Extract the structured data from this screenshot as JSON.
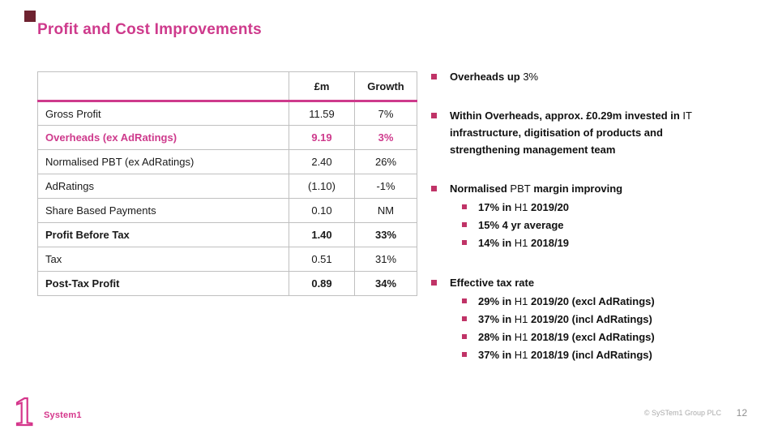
{
  "slide": {
    "title": "Profit and Cost Improvements",
    "page_number": "12",
    "footer_copyright": "© SySTem1 Group PLC",
    "logo_numeral": "1",
    "logo_text": "System1"
  },
  "colors": {
    "accent_pink": "#CE3A8C",
    "bullet_square": "#C03367",
    "corner_square": "#6E2230",
    "table_border": "#C0C0C0",
    "footer_gray": "#ABABAB"
  },
  "table": {
    "headers": [
      "",
      "£m",
      "Growth"
    ],
    "rows": [
      {
        "label": "Gross Profit",
        "gbp_m": "11.59",
        "growth": "7%",
        "style": "normal"
      },
      {
        "label": "Overheads (ex AdRatings)",
        "gbp_m": "9.19",
        "growth": "3%",
        "style": "pink-bold"
      },
      {
        "label": "Normalised PBT (ex AdRatings)",
        "gbp_m": "2.40",
        "growth": "26%",
        "style": "normal"
      },
      {
        "label": "AdRatings",
        "gbp_m": "(1.10)",
        "growth": "-1%",
        "style": "normal"
      },
      {
        "label": "Share Based Payments",
        "gbp_m": "0.10",
        "growth": "NM",
        "style": "normal"
      },
      {
        "label": "Profit Before Tax",
        "gbp_m": "1.40",
        "growth": "33%",
        "style": "bold"
      },
      {
        "label": "Tax",
        "gbp_m": "0.51",
        "growth": "31%",
        "style": "normal"
      },
      {
        "label": "Post-Tax Profit",
        "gbp_m": "0.89",
        "growth": "34%",
        "style": "bold"
      }
    ]
  },
  "bullets": [
    {
      "segments": [
        {
          "t": "Overheads up ",
          "b": true
        },
        {
          "t": "3%",
          "b": false
        }
      ],
      "subs": []
    },
    {
      "segments": [
        {
          "t": "Within Overheads, approx. £0.29m invested in ",
          "b": true
        },
        {
          "t": "IT",
          "b": false
        },
        {
          "t": " infrastructure, digitisation of products and strengthening management team",
          "b": true
        }
      ],
      "subs": []
    },
    {
      "segments": [
        {
          "t": "Normalised ",
          "b": true
        },
        {
          "t": "PBT",
          "b": false
        },
        {
          "t": " margin improving",
          "b": true
        }
      ],
      "subs": [
        [
          {
            "t": "17% in ",
            "b": true
          },
          {
            "t": "H1",
            "b": false
          },
          {
            "t": " 2019/20",
            "b": true
          }
        ],
        [
          {
            "t": "15% 4 yr average",
            "b": true
          }
        ],
        [
          {
            "t": "14% in ",
            "b": true
          },
          {
            "t": "H1",
            "b": false
          },
          {
            "t": " 2018/19",
            "b": true
          }
        ]
      ]
    },
    {
      "segments": [
        {
          "t": "Effective tax rate",
          "b": true
        }
      ],
      "subs": [
        [
          {
            "t": "29% in ",
            "b": true
          },
          {
            "t": "H1",
            "b": false
          },
          {
            "t": " 2019/20 (excl AdRatings)",
            "b": true
          }
        ],
        [
          {
            "t": "37% in ",
            "b": true
          },
          {
            "t": "H1",
            "b": false
          },
          {
            "t": " 2019/20 (incl AdRatings)",
            "b": true
          }
        ],
        [
          {
            "t": "28% in ",
            "b": true
          },
          {
            "t": "H1",
            "b": false
          },
          {
            "t": " 2018/19 (excl AdRatings)",
            "b": true
          }
        ],
        [
          {
            "t": "37% in ",
            "b": true
          },
          {
            "t": "H1",
            "b": false
          },
          {
            "t": " 2018/19 (incl AdRatings)",
            "b": true
          }
        ]
      ]
    }
  ]
}
